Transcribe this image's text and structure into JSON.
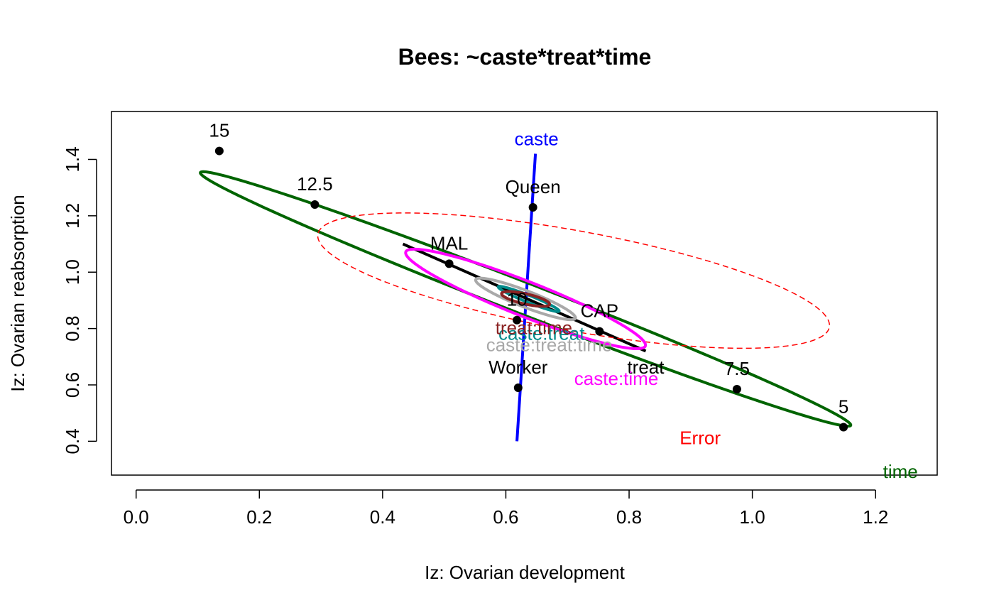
{
  "chart_data": {
    "type": "scatter",
    "title": "Bees: ~caste*treat*time",
    "xlabel": "Iz: Ovarian development",
    "ylabel": "Iz: Ovarian reabsorption",
    "xlim": [
      -0.04,
      1.3
    ],
    "ylim": [
      0.28,
      1.57
    ],
    "x_ticks": [
      0.0,
      0.2,
      0.4,
      0.6,
      0.8,
      1.0,
      1.2
    ],
    "x_tick_labels": [
      "0.0",
      "0.2",
      "0.4",
      "0.6",
      "0.8",
      "1.0",
      "1.2"
    ],
    "y_ticks": [
      0.4,
      0.6,
      0.8,
      1.0,
      1.2,
      1.4
    ],
    "y_tick_labels": [
      "0.4",
      "0.6",
      "0.8",
      "1.0",
      "1.2",
      "1.4"
    ],
    "grid": false,
    "legend": "none",
    "points": [
      {
        "label": "15",
        "x": 0.135,
        "y": 1.43
      },
      {
        "label": "12.5",
        "x": 0.29,
        "y": 1.24
      },
      {
        "label": "Queen",
        "x": 0.644,
        "y": 1.23
      },
      {
        "label": "MAL",
        "x": 0.508,
        "y": 1.03
      },
      {
        "label": "10",
        "x": 0.618,
        "y": 0.83
      },
      {
        "label": "CAP",
        "x": 0.752,
        "y": 0.79
      },
      {
        "label": "Worker",
        "x": 0.62,
        "y": 0.59
      },
      {
        "label": "7.5",
        "x": 0.975,
        "y": 0.585
      },
      {
        "label": "5",
        "x": 1.148,
        "y": 0.45
      }
    ],
    "effects": [
      {
        "name": "caste",
        "color": "#0000ff",
        "shape": "line",
        "x1": 0.618,
        "y1": 0.4,
        "x2": 0.648,
        "y2": 1.42,
        "label_x": 0.614,
        "label_y": 1.45
      },
      {
        "name": "treat",
        "color": "#000000",
        "shape": "line",
        "x1": 0.433,
        "y1": 1.1,
        "x2": 0.827,
        "y2": 0.72,
        "label_x": 0.797,
        "label_y": 0.64
      },
      {
        "name": "time",
        "color": "#006400",
        "shape": "ellipse",
        "cx": 0.632,
        "cy": 0.905,
        "a": 0.693,
        "b": 0.0455,
        "angle_deg": -40.5,
        "label_x": 1.212,
        "label_y": 0.27
      },
      {
        "name": "Error",
        "color": "#ff0000",
        "shape": "ellipse",
        "dashed": true,
        "cx": 0.71,
        "cy": 0.97,
        "a": 0.45,
        "b": 0.166,
        "angle_deg": -24.5,
        "label_x": 0.882,
        "label_y": 0.39
      },
      {
        "name": "caste:time",
        "color": "#ff00ff",
        "shape": "ellipse",
        "cx": 0.632,
        "cy": 0.905,
        "a": 0.258,
        "b": 0.05,
        "angle_deg": -42,
        "label_x": 0.711,
        "label_y": 0.6
      },
      {
        "name": "caste:treat:time",
        "color": "#a9a9a9",
        "shape": "ellipse",
        "cx": 0.632,
        "cy": 0.905,
        "a": 0.107,
        "b": 0.0235,
        "angle_deg": -42,
        "label_x": 0.568,
        "label_y": 0.72
      },
      {
        "name": "caste:treat",
        "color": "#008b8b",
        "shape": "ellipse",
        "cx": 0.637,
        "cy": 0.905,
        "a": 0.066,
        "b": 0.01,
        "angle_deg": -42,
        "label_x": 0.588,
        "label_y": 0.76
      },
      {
        "name": "treat:time",
        "color": "#8b2323",
        "shape": "ellipse",
        "cx": 0.632,
        "cy": 0.905,
        "a": 0.044,
        "b": 0.0165,
        "angle_deg": -30,
        "label_x": 0.583,
        "label_y": 0.78
      }
    ]
  }
}
